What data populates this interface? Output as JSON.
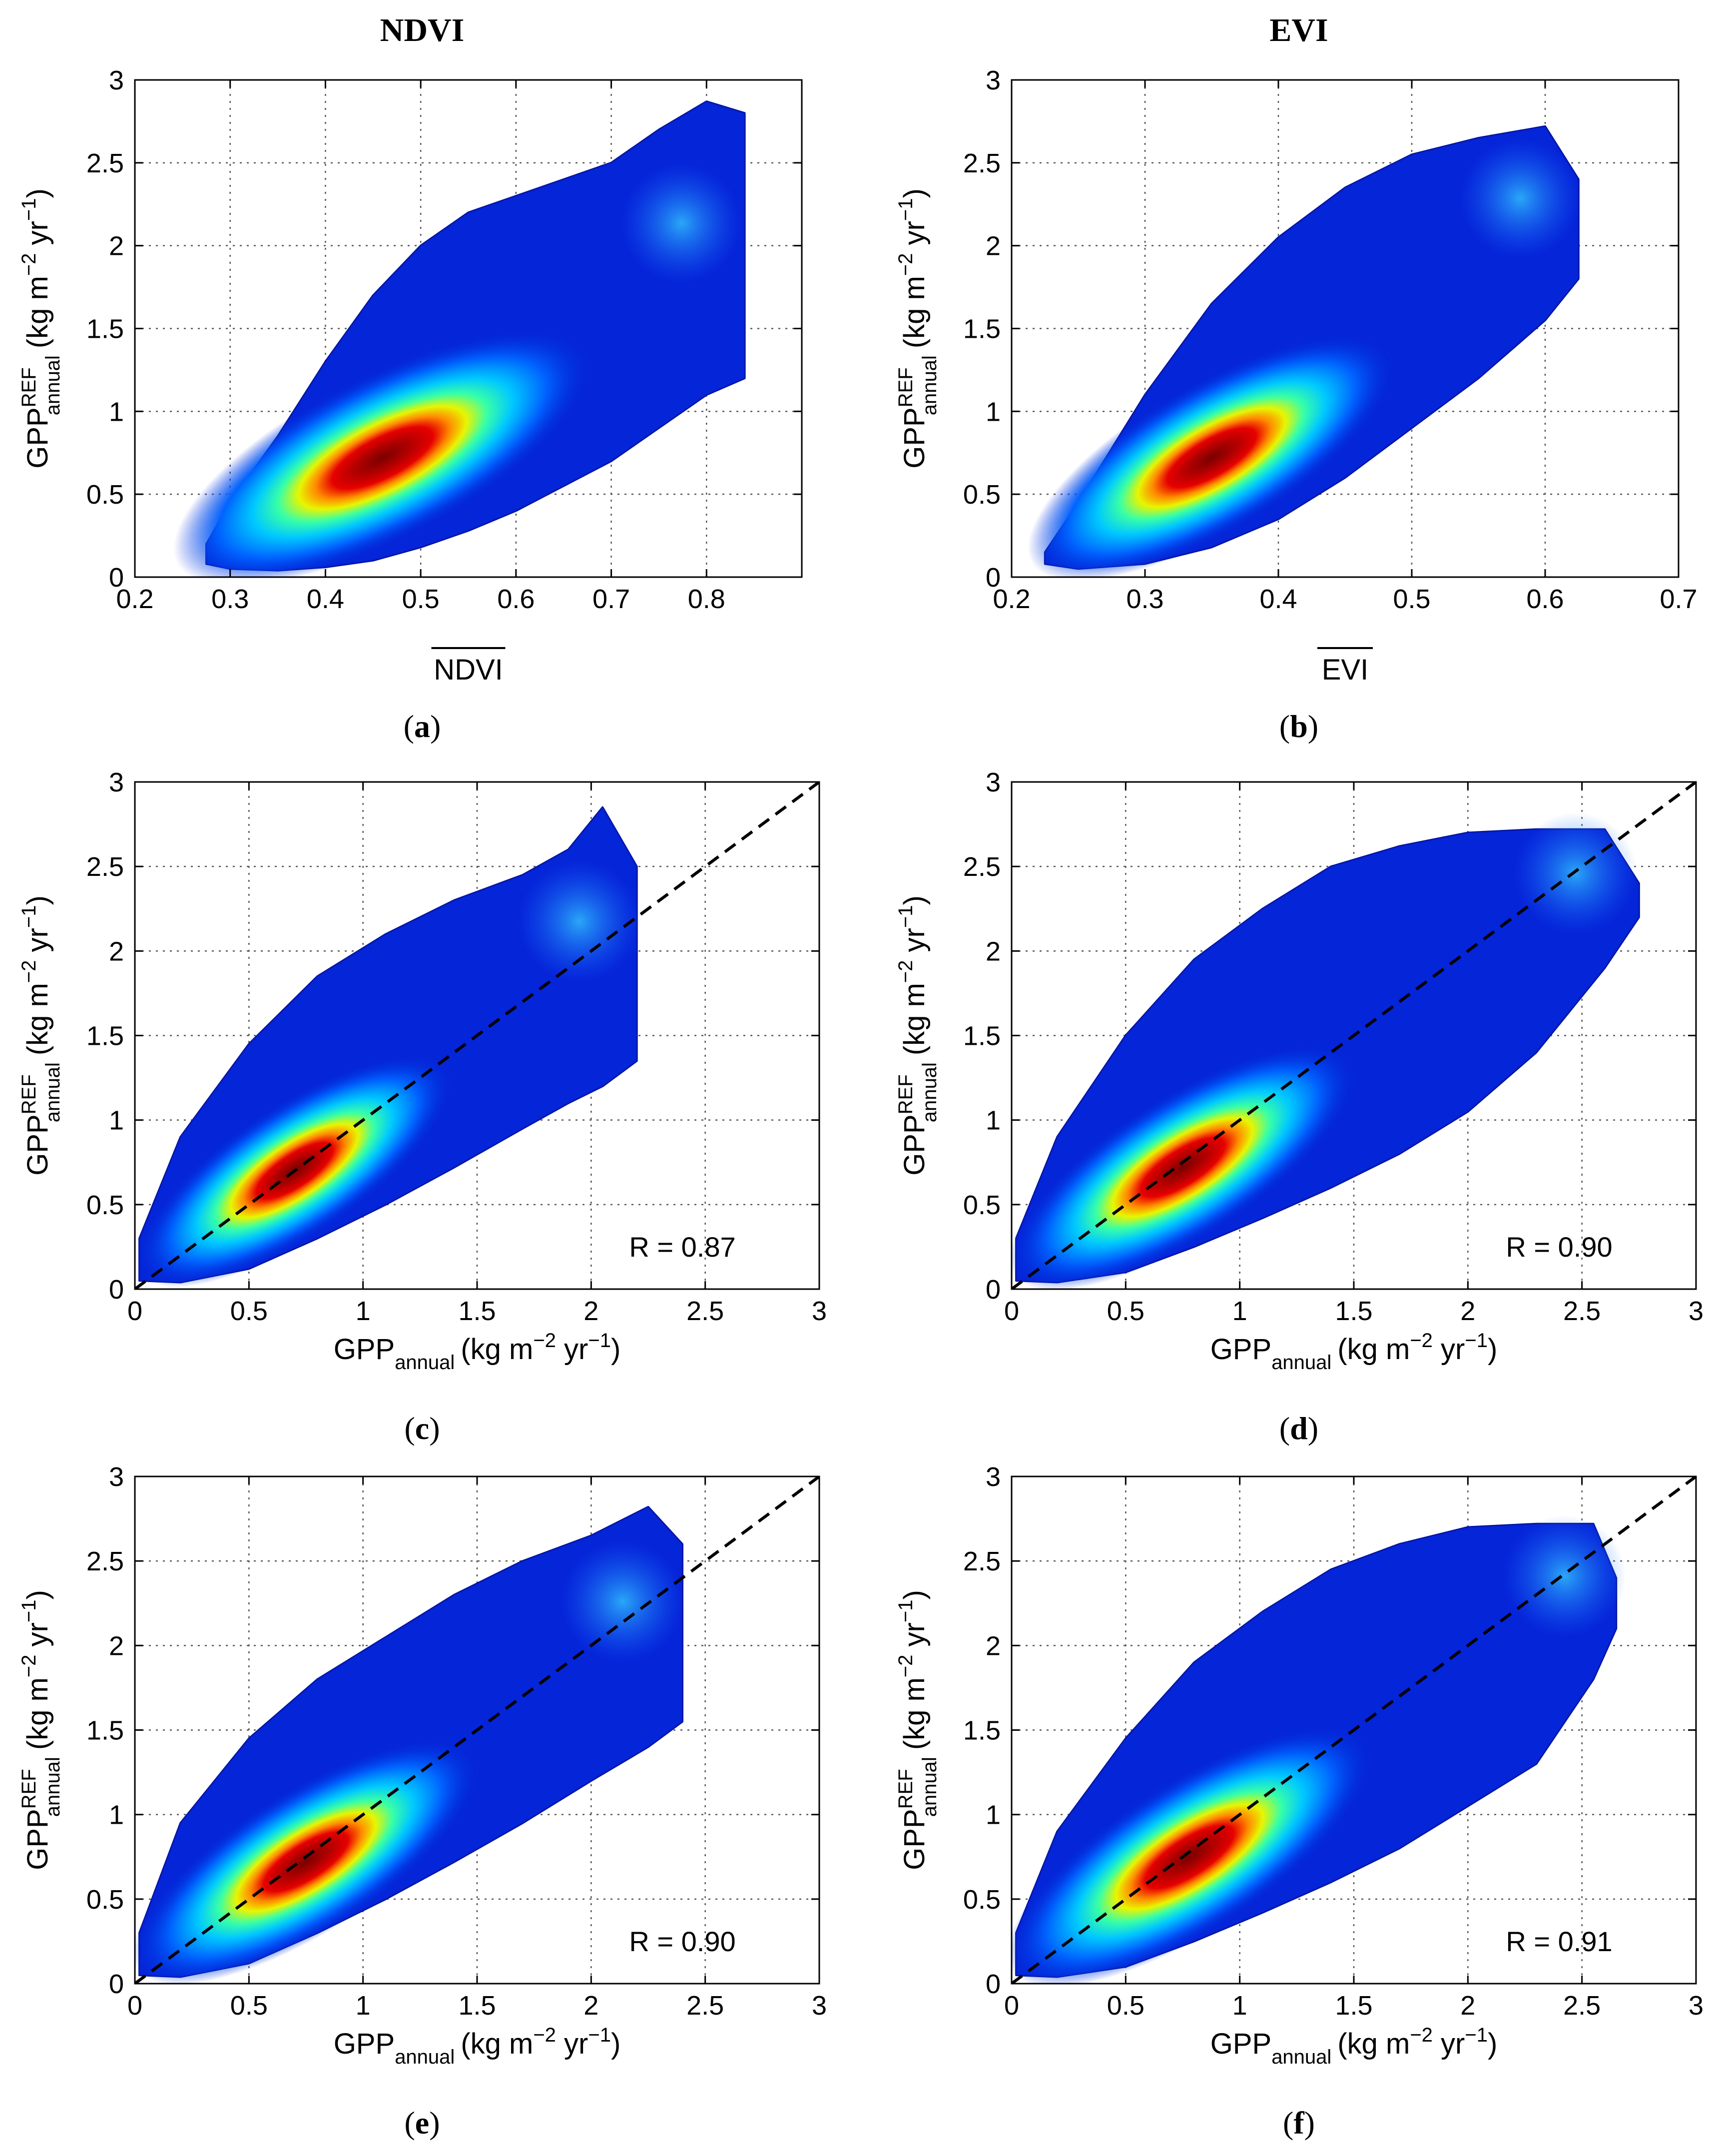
{
  "column_titles": [
    "NDVI",
    "EVI"
  ],
  "common": {
    "y_label_main": "GPP",
    "y_label_sup": "REF",
    "y_label_sub": "annual",
    "y_label_units_a": "(kg m",
    "y_label_units_exp1": "−2",
    "y_label_units_b": " yr",
    "y_label_units_exp2": "−1",
    "y_label_units_c": ")",
    "x_label_gpp_main": "GPP",
    "x_label_gpp_sub": "annual"
  },
  "chart_data": [
    {
      "id": "a",
      "type": "scatter",
      "caption": "a",
      "xlabel": "NDVI",
      "xlabel_overline": true,
      "xlim": [
        0.2,
        0.9
      ],
      "ylim": [
        0,
        3
      ],
      "xticks": [
        "0.2",
        "0.3",
        "0.4",
        "0.5",
        "0.6",
        "0.7",
        "0.8"
      ],
      "yticks": [
        "0",
        "0.5",
        "1",
        "1.5",
        "2",
        "2.5",
        "3"
      ],
      "grid": true,
      "density_plot": true,
      "x": [
        0.275,
        0.3,
        0.35,
        0.4,
        0.45,
        0.5,
        0.55,
        0.6,
        0.65,
        0.7,
        0.75,
        0.8,
        0.84
      ],
      "y_lower": [
        0.08,
        0.05,
        0.04,
        0.06,
        0.1,
        0.18,
        0.28,
        0.4,
        0.55,
        0.7,
        0.9,
        1.1,
        1.2
      ],
      "y_upper": [
        0.2,
        0.45,
        0.85,
        1.3,
        1.7,
        2.0,
        2.2,
        2.3,
        2.4,
        2.5,
        2.7,
        2.87,
        2.8
      ],
      "density_center": {
        "x": 0.46,
        "y": 0.72
      },
      "one_to_one_line": false,
      "annotation": ""
    },
    {
      "id": "b",
      "type": "scatter",
      "caption": "b",
      "xlabel": "EVI",
      "xlabel_overline": true,
      "xlim": [
        0.2,
        0.7
      ],
      "ylim": [
        0,
        3
      ],
      "xticks": [
        "0.2",
        "0.3",
        "0.4",
        "0.5",
        "0.6",
        "0.7"
      ],
      "yticks": [
        "0",
        "0.5",
        "1",
        "1.5",
        "2",
        "2.5",
        "3"
      ],
      "grid": true,
      "density_plot": true,
      "x": [
        0.225,
        0.25,
        0.3,
        0.35,
        0.4,
        0.45,
        0.5,
        0.55,
        0.6,
        0.625
      ],
      "y_lower": [
        0.08,
        0.05,
        0.08,
        0.18,
        0.35,
        0.6,
        0.9,
        1.2,
        1.55,
        1.8
      ],
      "y_upper": [
        0.15,
        0.45,
        1.1,
        1.65,
        2.05,
        2.35,
        2.55,
        2.65,
        2.72,
        2.4
      ],
      "density_center": {
        "x": 0.35,
        "y": 0.72
      },
      "one_to_one_line": false,
      "annotation": ""
    },
    {
      "id": "c",
      "type": "scatter",
      "caption": "c",
      "xlabel": "GPP annual (kg m−2 yr−1)",
      "xlim": [
        0,
        3
      ],
      "ylim": [
        0,
        3
      ],
      "xticks": [
        "0",
        "0.5",
        "1",
        "1.5",
        "2",
        "2.5",
        "3"
      ],
      "yticks": [
        "0",
        "0.5",
        "1",
        "1.5",
        "2",
        "2.5",
        "3"
      ],
      "grid": true,
      "density_plot": true,
      "x": [
        0.02,
        0.2,
        0.5,
        0.8,
        1.1,
        1.4,
        1.7,
        1.9,
        2.05,
        2.2
      ],
      "y_lower": [
        0.05,
        0.04,
        0.12,
        0.3,
        0.5,
        0.72,
        0.95,
        1.1,
        1.2,
        1.35
      ],
      "y_upper": [
        0.3,
        0.9,
        1.45,
        1.85,
        2.1,
        2.3,
        2.45,
        2.6,
        2.85,
        2.5
      ],
      "density_center": {
        "x": 0.7,
        "y": 0.7
      },
      "one_to_one_line": true,
      "annotation": "R = 0.87"
    },
    {
      "id": "d",
      "type": "scatter",
      "caption": "d",
      "xlabel": "GPP annual (kg m−2 yr−1)",
      "xlim": [
        0,
        3
      ],
      "ylim": [
        0,
        3
      ],
      "xticks": [
        "0",
        "0.5",
        "1",
        "1.5",
        "2",
        "2.5",
        "3"
      ],
      "yticks": [
        "0",
        "0.5",
        "1",
        "1.5",
        "2",
        "2.5",
        "3"
      ],
      "grid": true,
      "density_plot": true,
      "x": [
        0.02,
        0.2,
        0.5,
        0.8,
        1.1,
        1.4,
        1.7,
        2.0,
        2.3,
        2.6,
        2.75
      ],
      "y_lower": [
        0.05,
        0.04,
        0.1,
        0.25,
        0.42,
        0.6,
        0.8,
        1.05,
        1.4,
        1.9,
        2.2
      ],
      "y_upper": [
        0.3,
        0.9,
        1.5,
        1.95,
        2.25,
        2.5,
        2.62,
        2.7,
        2.72,
        2.72,
        2.4
      ],
      "density_center": {
        "x": 0.75,
        "y": 0.72
      },
      "one_to_one_line": true,
      "annotation": "R = 0.90"
    },
    {
      "id": "e",
      "type": "scatter",
      "caption": "e",
      "xlabel": "GPP annual (kg m−2 yr−1)",
      "xlim": [
        0,
        3
      ],
      "ylim": [
        0,
        3
      ],
      "xticks": [
        "0",
        "0.5",
        "1",
        "1.5",
        "2",
        "2.5",
        "3"
      ],
      "yticks": [
        "0",
        "0.5",
        "1",
        "1.5",
        "2",
        "2.5",
        "3"
      ],
      "grid": true,
      "density_plot": true,
      "x": [
        0.02,
        0.2,
        0.5,
        0.8,
        1.1,
        1.4,
        1.7,
        2.0,
        2.25,
        2.4
      ],
      "y_lower": [
        0.05,
        0.04,
        0.12,
        0.3,
        0.5,
        0.72,
        0.95,
        1.2,
        1.4,
        1.55
      ],
      "y_upper": [
        0.3,
        0.95,
        1.45,
        1.8,
        2.05,
        2.3,
        2.5,
        2.65,
        2.82,
        2.6
      ],
      "density_center": {
        "x": 0.75,
        "y": 0.72
      },
      "one_to_one_line": true,
      "annotation": "R = 0.90"
    },
    {
      "id": "f",
      "type": "scatter",
      "caption": "f",
      "xlabel": "GPP annual (kg m−2 yr−1)",
      "xlim": [
        0,
        3
      ],
      "ylim": [
        0,
        3
      ],
      "xticks": [
        "0",
        "0.5",
        "1",
        "1.5",
        "2",
        "2.5",
        "3"
      ],
      "yticks": [
        "0",
        "0.5",
        "1",
        "1.5",
        "2",
        "2.5",
        "3"
      ],
      "grid": true,
      "density_plot": true,
      "x": [
        0.02,
        0.2,
        0.5,
        0.8,
        1.1,
        1.4,
        1.7,
        2.0,
        2.3,
        2.55,
        2.65
      ],
      "y_lower": [
        0.05,
        0.04,
        0.1,
        0.25,
        0.42,
        0.6,
        0.8,
        1.05,
        1.3,
        1.8,
        2.1
      ],
      "y_upper": [
        0.3,
        0.9,
        1.45,
        1.9,
        2.2,
        2.45,
        2.6,
        2.7,
        2.72,
        2.72,
        2.4
      ],
      "density_center": {
        "x": 0.78,
        "y": 0.75
      },
      "one_to_one_line": true,
      "annotation": "R = 0.91"
    }
  ]
}
